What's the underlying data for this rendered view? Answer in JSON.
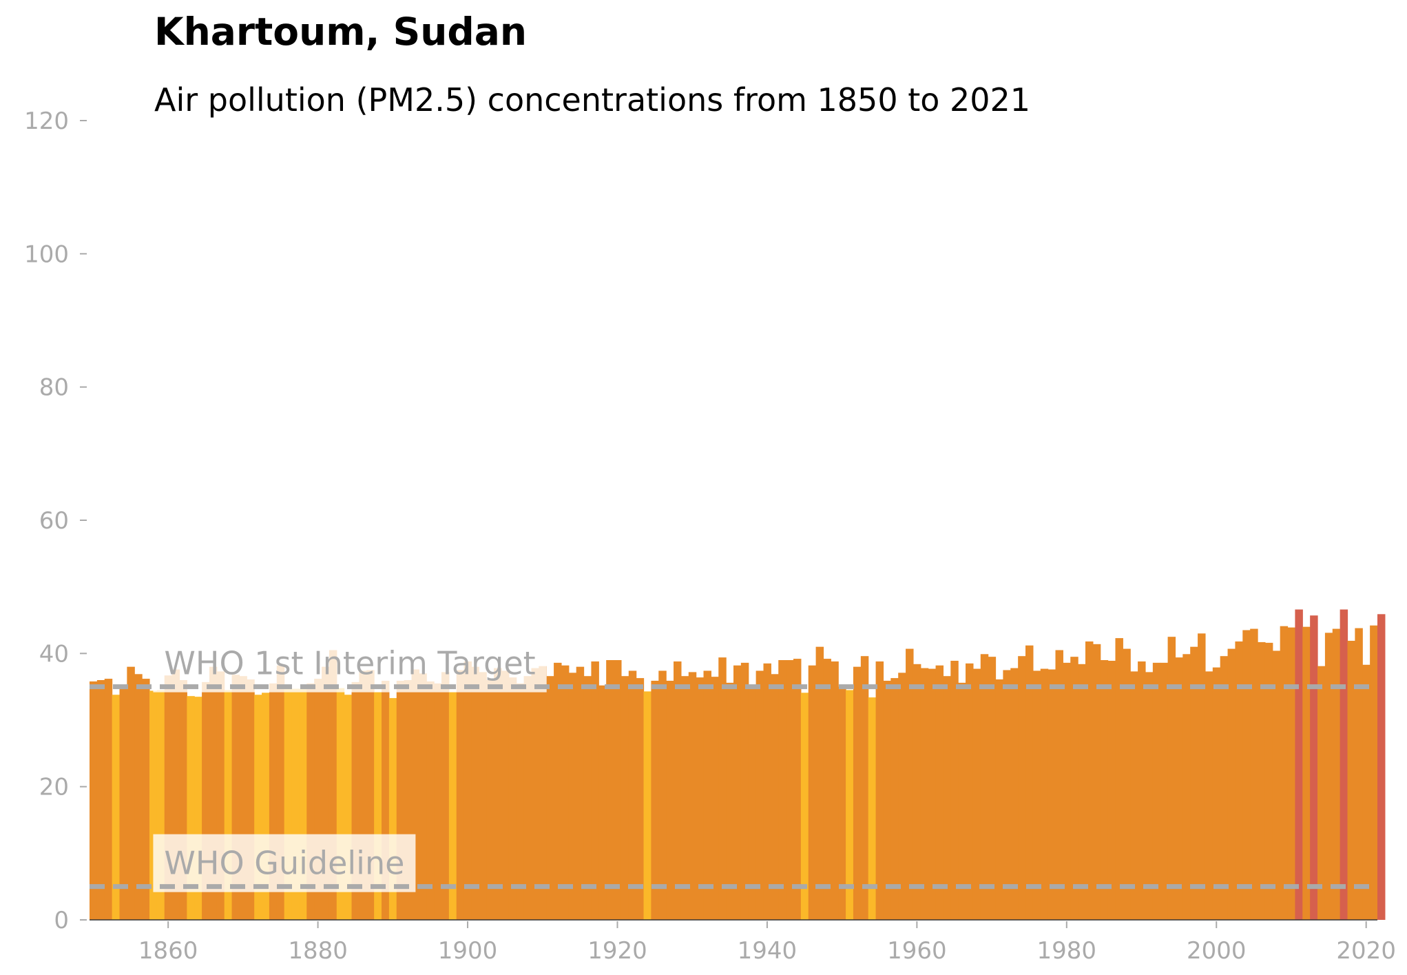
{
  "title": "Khartoum, Sudan",
  "subtitle": "Air pollution (PM2.5) concentrations from 1850 to 2021",
  "colors": {
    "low": "#fbb829",
    "mid": "#e88a27",
    "high": "#d6604d",
    "guide_line": "#aaaaaa",
    "tick_text": "#aaaaaa",
    "annotation_box": "#ffffff"
  },
  "chart_data": {
    "type": "bar",
    "title": "Khartoum, Sudan",
    "subtitle": "Air pollution (PM2.5) concentrations from 1850 to 2021",
    "xlabel": "",
    "ylabel": "",
    "xlim": [
      1850,
      2022
    ],
    "ylim": [
      0,
      120
    ],
    "grid": false,
    "x_ticks": [
      1860,
      1880,
      1900,
      1920,
      1940,
      1960,
      1980,
      2000,
      2020
    ],
    "y_ticks": [
      0,
      20,
      40,
      60,
      80,
      100,
      120
    ],
    "color_rule": "bar color by value band: below ~35 yellow, ~35-45 orange, above ~45 red",
    "start_year": 1850,
    "values": [
      35.8,
      36.0,
      36.2,
      33.8,
      35.0,
      38.0,
      36.9,
      36.2,
      34.4,
      34.5,
      36.7,
      37.6,
      36.0,
      33.6,
      33.5,
      35.7,
      38.0,
      37.3,
      34.5,
      36.8,
      36.6,
      36.1,
      33.8,
      34.1,
      35.5,
      38.2,
      34.7,
      34.7,
      34.7,
      35.5,
      36.2,
      38.0,
      40.5,
      34.8,
      33.8,
      35.7,
      37.4,
      37.5,
      34.2,
      35.9,
      33.3,
      35.9,
      36.0,
      37.6,
      37.0,
      35.8,
      35.5,
      37.2,
      34.2,
      37.5,
      38.8,
      38.0,
      37.2,
      36.0,
      37.8,
      37.4,
      36.4,
      35.5,
      36.6,
      37.8,
      38.1,
      36.6,
      38.6,
      38.2,
      37.1,
      38.0,
      36.6,
      38.8,
      35.2,
      39.0,
      39.0,
      36.6,
      37.4,
      36.3,
      34.3,
      35.9,
      37.4,
      35.9,
      38.8,
      36.6,
      37.2,
      36.4,
      37.4,
      36.5,
      39.4,
      35.6,
      38.2,
      38.6,
      35.1,
      37.4,
      38.5,
      36.9,
      39.0,
      39.0,
      39.2,
      34.1,
      38.2,
      41.0,
      39.2,
      38.8,
      35.0,
      34.5,
      38.0,
      39.6,
      33.4,
      38.8,
      35.9,
      36.3,
      37.1,
      40.7,
      38.4,
      37.8,
      37.7,
      38.2,
      36.6,
      38.9,
      35.6,
      38.5,
      37.7,
      39.9,
      39.5,
      36.1,
      37.5,
      37.8,
      39.6,
      41.2,
      37.4,
      37.7,
      37.6,
      40.5,
      38.6,
      39.5,
      38.4,
      41.8,
      41.4,
      39.0,
      38.9,
      42.3,
      40.7,
      37.3,
      38.8,
      37.2,
      38.6,
      38.6,
      42.5,
      39.4,
      39.9,
      41.0,
      43.0,
      37.3,
      37.9,
      39.6,
      40.7,
      41.8,
      43.5,
      43.7,
      41.7,
      41.6,
      40.4,
      44.1,
      43.9,
      46.6,
      44.0,
      45.7,
      38.1,
      43.1,
      43.7,
      46.6,
      41.9,
      43.8,
      38.3,
      44.2,
      45.9
    ],
    "series": [
      {
        "name": "",
        "x_start": 1850,
        "x_end": 2021
      }
    ],
    "reference_lines": [
      {
        "label": "WHO 1st Interim Target",
        "value": 35
      },
      {
        "label": "WHO Guideline",
        "value": 5
      }
    ]
  }
}
